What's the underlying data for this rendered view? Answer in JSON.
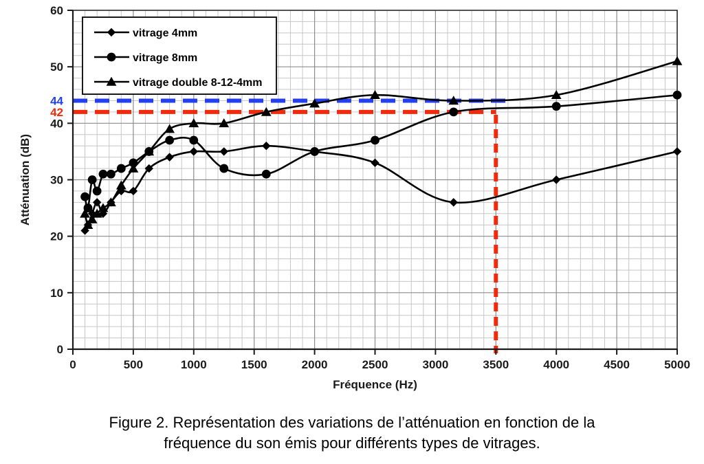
{
  "figure": {
    "caption_line1": "Figure 2. Représentation des variations de l’atténuation en fonction de la",
    "caption_line2": "fréquence du son émis pour différents types de vitrages."
  },
  "colors": {
    "series_black": "#000000",
    "ref_blue": "#2440ee",
    "ref_red": "#ee2b0c",
    "grid_minor": "#c6c6c6",
    "grid_major": "#8c8c8c",
    "axis": "#1a1a1a"
  },
  "chart_data": {
    "type": "line",
    "title": "",
    "xlabel": "Fréquence (Hz)",
    "ylabel": "Atténuation (dB)",
    "xlim": [
      0,
      5000
    ],
    "ylim": [
      0,
      60
    ],
    "grid": true,
    "x_minor_step": 100,
    "y_minor_step": 2,
    "x_major_ticks": [
      0,
      500,
      1000,
      1500,
      2000,
      2500,
      3000,
      3500,
      4000,
      4500,
      5000
    ],
    "x_tick_labels": [
      "0",
      "500",
      "1000",
      "1500",
      "2000",
      "2500",
      "3000",
      "3500",
      "4000",
      "4500",
      "5000"
    ],
    "y_major_ticks": [
      0,
      10,
      20,
      30,
      40,
      50,
      60
    ],
    "y_tick_labels": [
      "0",
      "10",
      "20",
      "30",
      "40",
      "50",
      "60"
    ],
    "legend_position": "top-left",
    "x": [
      100,
      125,
      160,
      200,
      250,
      315,
      400,
      500,
      630,
      800,
      1000,
      1250,
      1600,
      2000,
      2500,
      3150,
      4000,
      5000
    ],
    "series": [
      {
        "name": "vitrage 4mm",
        "marker": "diamond",
        "color": "#000000",
        "values": [
          21,
          22,
          24,
          26,
          24,
          26,
          28,
          28,
          32,
          34,
          35,
          35,
          36,
          35,
          33,
          26,
          30,
          35
        ]
      },
      {
        "name": "vitrage 8mm",
        "marker": "circle",
        "color": "#000000",
        "values": [
          27,
          25,
          30,
          28,
          31,
          31,
          32,
          33,
          35,
          37,
          37,
          32,
          31,
          35,
          37,
          42,
          43,
          45
        ]
      },
      {
        "name": "vitrage double 8-12-4mm",
        "marker": "triangle",
        "color": "#000000",
        "values": [
          24,
          22,
          23,
          24,
          25,
          26,
          29,
          32,
          35,
          39,
          40,
          40,
          42,
          43.5,
          45,
          44,
          45,
          51
        ]
      }
    ],
    "reference_lines": [
      {
        "axis": "y",
        "value": 44,
        "label": "44",
        "color": "#2440ee",
        "x_start": 0,
        "x_end": 3590
      },
      {
        "axis": "y",
        "value": 42,
        "label": "42",
        "color": "#ee2b0c",
        "x_start": 0,
        "x_end": 3500
      },
      {
        "axis": "x",
        "value": 3500,
        "label": "",
        "color": "#ee2b0c",
        "y_start": 0,
        "y_end": 41.5
      }
    ]
  }
}
